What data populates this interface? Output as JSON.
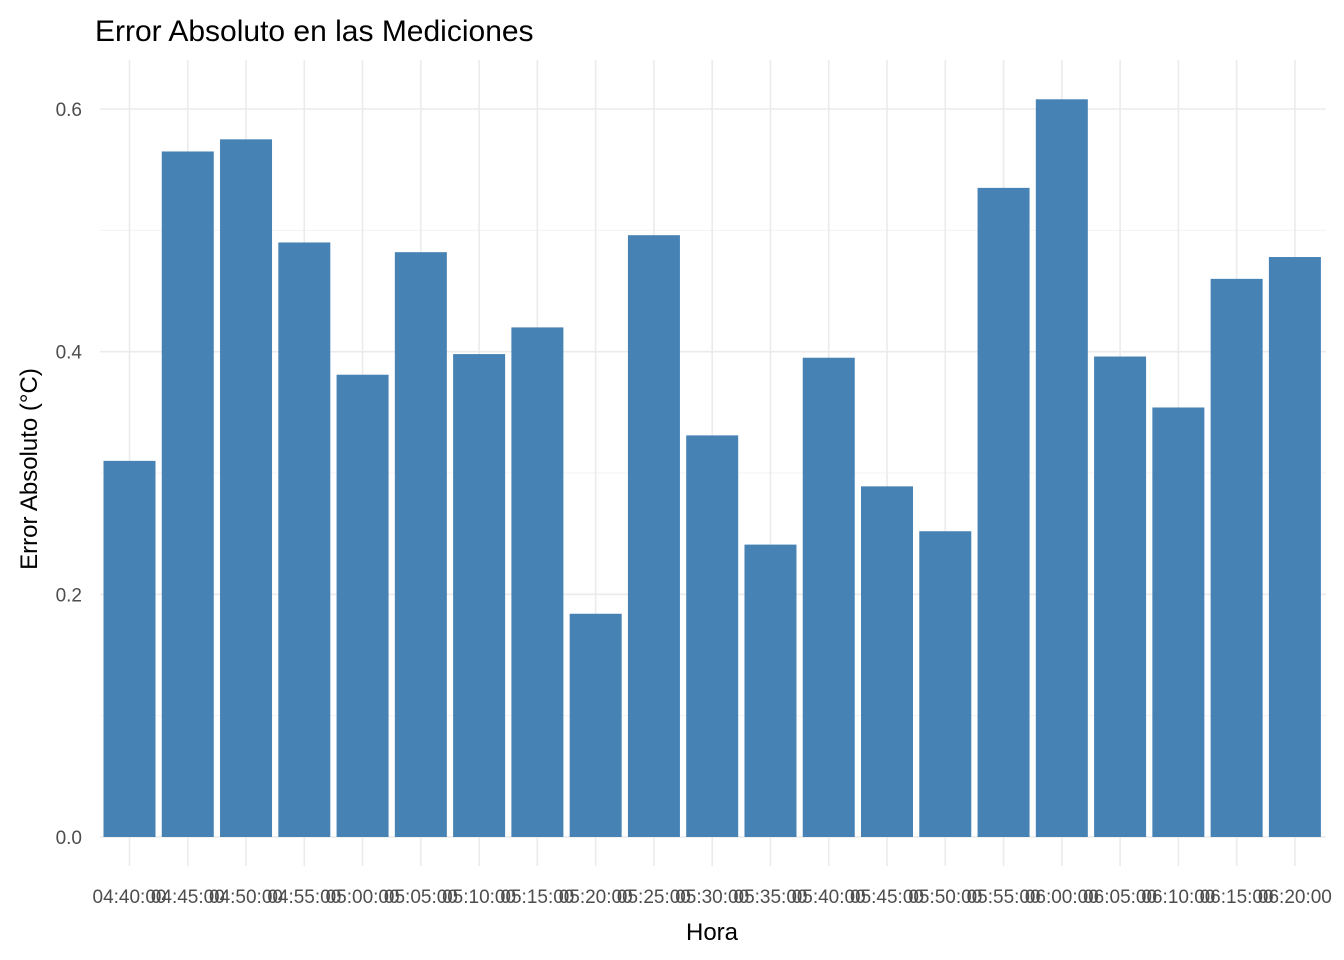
{
  "chart_data": {
    "type": "bar",
    "title": "Error Absoluto en las Mediciones",
    "xlabel": "Hora",
    "ylabel": "Error Absoluto (°C)",
    "categories": [
      "04:40:00",
      "04:45:00",
      "04:50:00",
      "04:55:00",
      "05:00:00",
      "05:05:00",
      "05:10:00",
      "05:15:00",
      "05:20:00",
      "05:25:00",
      "05:30:00",
      "05:35:00",
      "05:40:00",
      "05:45:00",
      "05:50:00",
      "05:55:00",
      "06:00:00",
      "06:05:00",
      "06:10:00",
      "06:15:00",
      "06:20:00"
    ],
    "values": [
      0.31,
      0.565,
      0.575,
      0.49,
      0.381,
      0.482,
      0.398,
      0.42,
      0.184,
      0.496,
      0.331,
      0.241,
      0.395,
      0.289,
      0.252,
      0.535,
      0.608,
      0.396,
      0.354,
      0.46,
      0.478
    ],
    "ylim": [
      0,
      0.63
    ],
    "y_ticks": [
      "0.0",
      "0.2",
      "0.4",
      "0.6"
    ],
    "grid": true,
    "bar_color": "#4682b4"
  }
}
